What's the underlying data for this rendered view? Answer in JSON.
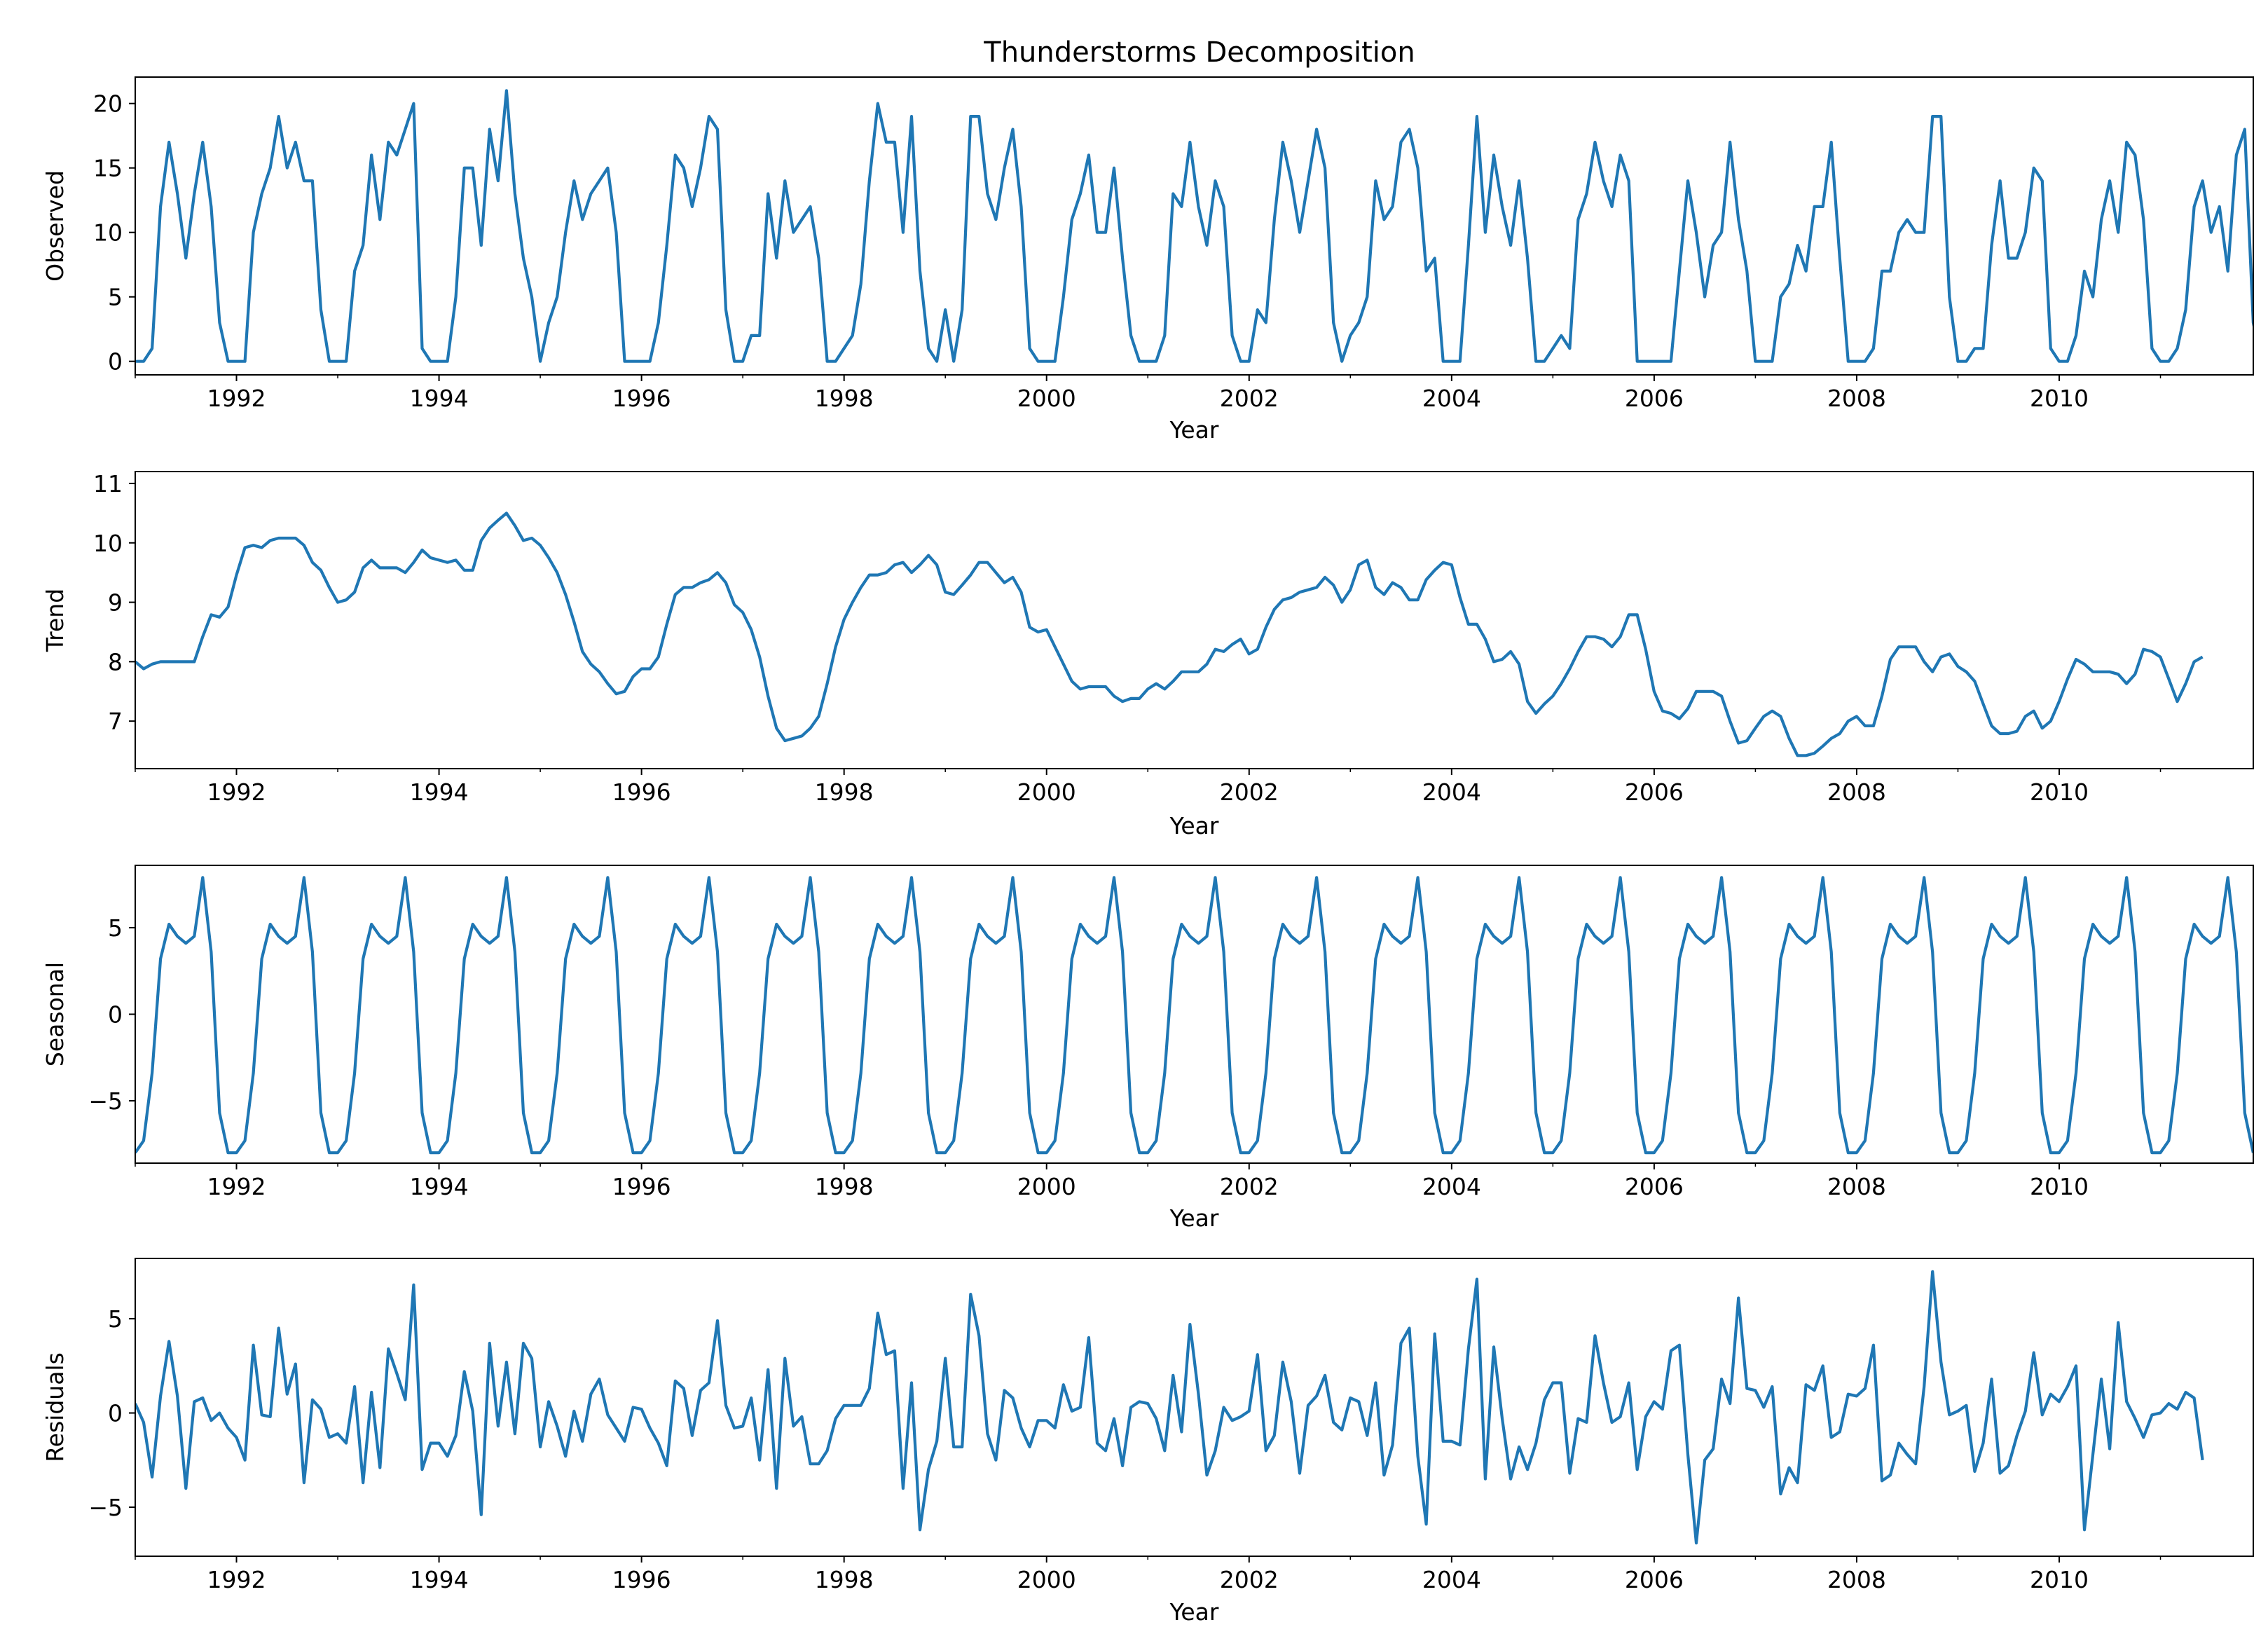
{
  "figure": {
    "title": "Thunderstorms Decomposition",
    "line_color": "#1f77b4"
  },
  "chart_data": [
    {
      "type": "line",
      "panel": "observed",
      "ylabel": "Observed",
      "xlabel": "Year",
      "xlim": [
        1991.0,
        2011.9167
      ],
      "ylim": [
        -1.05,
        22.05
      ],
      "yticks": [
        0,
        5,
        10,
        15,
        20
      ],
      "xticks": [
        1992,
        1994,
        1996,
        1998,
        2000,
        2002,
        2004,
        2006,
        2008,
        2010
      ],
      "grid": false,
      "x_start": 1991.0,
      "x_step": 0.08333,
      "values": [
        0,
        0,
        1,
        12,
        17,
        13,
        8,
        13,
        17,
        12,
        3,
        0,
        0,
        0,
        10,
        13,
        15,
        19,
        15,
        17,
        14,
        14,
        4,
        0,
        0,
        0,
        7,
        9,
        16,
        11,
        17,
        16,
        18,
        20,
        1,
        0,
        0,
        0,
        5,
        15,
        15,
        9,
        18,
        14,
        21,
        13,
        8,
        5,
        0,
        3,
        5,
        10,
        14,
        11,
        13,
        14,
        15,
        10,
        0,
        0,
        0,
        0,
        3,
        9,
        16,
        15,
        12,
        15,
        19,
        18,
        4,
        0,
        0,
        2,
        2,
        13,
        8,
        14,
        10,
        11,
        12,
        8,
        0,
        0,
        1,
        2,
        6,
        14,
        20,
        17,
        17,
        10,
        19,
        7,
        1,
        0,
        4,
        0,
        4,
        19,
        19,
        13,
        11,
        15,
        18,
        12,
        1,
        0,
        0,
        0,
        5,
        11,
        13,
        16,
        10,
        10,
        15,
        8,
        2,
        0,
        0,
        0,
        2,
        13,
        12,
        17,
        12,
        9,
        14,
        12,
        2,
        0,
        0,
        4,
        3,
        11,
        17,
        14,
        10,
        14,
        18,
        15,
        3,
        0,
        2,
        3,
        5,
        14,
        11,
        12,
        17,
        18,
        15,
        7,
        8,
        0,
        0,
        0,
        9,
        19,
        10,
        16,
        12,
        9,
        14,
        8,
        0,
        0,
        1,
        2,
        1,
        11,
        13,
        17,
        14,
        12,
        16,
        14,
        0,
        0,
        0,
        0,
        0,
        7,
        14,
        10,
        5,
        9,
        10,
        17,
        11,
        7,
        0,
        0,
        0,
        5,
        6,
        9,
        7,
        12,
        12,
        17,
        8,
        0,
        0,
        0,
        1,
        7,
        7,
        10,
        11,
        10,
        10,
        19,
        19,
        5,
        0,
        0,
        1,
        1,
        9,
        14,
        8,
        8,
        10,
        15,
        14,
        1,
        0,
        0,
        2,
        7,
        5,
        11,
        14,
        10,
        17,
        16,
        11,
        1,
        0,
        0,
        1,
        4,
        12,
        14,
        10,
        12,
        7,
        16,
        18,
        3,
        0
      ]
    },
    {
      "type": "line",
      "panel": "trend",
      "ylabel": "Trend",
      "xlabel": "Year",
      "xlim": [
        1991.0,
        2011.9167
      ],
      "ylim": [
        6.2,
        11.2
      ],
      "yticks": [
        7,
        8,
        9,
        10,
        11
      ],
      "xticks": [
        1992,
        1994,
        1996,
        1998,
        2000,
        2002,
        2004,
        2006,
        2008,
        2010
      ],
      "grid": false,
      "x_start": 1991.0,
      "x_step": 0.08333,
      "values": [
        8.0,
        7.88,
        7.96,
        8.0,
        8.0,
        8.0,
        8.0,
        8.0,
        8.42,
        8.79,
        8.75,
        8.92,
        9.46,
        9.92,
        9.96,
        9.92,
        10.04,
        10.08,
        10.08,
        10.08,
        9.96,
        9.67,
        9.54,
        9.25,
        9.0,
        9.04,
        9.17,
        9.58,
        9.71,
        9.58,
        9.58,
        9.58,
        9.5,
        9.67,
        9.88,
        9.75,
        9.71,
        9.67,
        9.71,
        9.54,
        9.54,
        10.04,
        10.25,
        10.38,
        10.5,
        10.29,
        10.04,
        10.08,
        9.96,
        9.75,
        9.5,
        9.13,
        8.67,
        8.17,
        7.96,
        7.83,
        7.63,
        7.46,
        7.5,
        7.75,
        7.88,
        7.88,
        8.08,
        8.63,
        9.13,
        9.25,
        9.25,
        9.33,
        9.38,
        9.5,
        9.33,
        8.96,
        8.83,
        8.54,
        8.08,
        7.42,
        6.88,
        6.67,
        6.71,
        6.75,
        6.88,
        7.08,
        7.63,
        8.25,
        8.71,
        9.0,
        9.25,
        9.46,
        9.46,
        9.5,
        9.63,
        9.67,
        9.5,
        9.63,
        9.79,
        9.63,
        9.17,
        9.13,
        9.29,
        9.46,
        9.67,
        9.67,
        9.5,
        9.33,
        9.42,
        9.17,
        8.58,
        8.5,
        8.54,
        8.25,
        7.96,
        7.67,
        7.54,
        7.58,
        7.58,
        7.58,
        7.42,
        7.33,
        7.38,
        7.38,
        7.54,
        7.63,
        7.54,
        7.67,
        7.83,
        7.83,
        7.83,
        7.96,
        8.21,
        8.17,
        8.29,
        8.38,
        8.13,
        8.21,
        8.58,
        8.88,
        9.04,
        9.08,
        9.17,
        9.21,
        9.25,
        9.42,
        9.29,
        9.0,
        9.21,
        9.63,
        9.71,
        9.25,
        9.13,
        9.33,
        9.25,
        9.04,
        9.04,
        9.38,
        9.54,
        9.67,
        9.63,
        9.08,
        8.63,
        8.63,
        8.38,
        8.0,
        8.04,
        8.17,
        7.96,
        7.33,
        7.13,
        7.29,
        7.42,
        7.63,
        7.88,
        8.17,
        8.42,
        8.42,
        8.38,
        8.25,
        8.42,
        8.79,
        8.79,
        8.21,
        7.5,
        7.17,
        7.13,
        7.04,
        7.21,
        7.5,
        7.5,
        7.5,
        7.42,
        7.0,
        6.63,
        6.67,
        6.88,
        7.08,
        7.17,
        7.08,
        6.71,
        6.42,
        6.42,
        6.46,
        6.58,
        6.71,
        6.79,
        7.0,
        7.08,
        6.92,
        6.92,
        7.42,
        8.04,
        8.25,
        8.25,
        8.25,
        8.0,
        7.83,
        8.08,
        8.13,
        7.92,
        7.83,
        7.67,
        7.29,
        6.92,
        6.79,
        6.79,
        6.83,
        7.08,
        7.17,
        6.88,
        7.0,
        7.33,
        7.71,
        8.04,
        7.96,
        7.83,
        7.83,
        7.83,
        7.79,
        7.63,
        7.79,
        8.21,
        8.17,
        8.08,
        7.71,
        7.33,
        7.63,
        8.0,
        8.08
      ]
    },
    {
      "type": "line",
      "panel": "seasonal",
      "ylabel": "Seasonal",
      "xlabel": "Year",
      "xlim": [
        1991.0,
        2011.9167
      ],
      "ylim": [
        -8.6,
        8.6
      ],
      "yticks": [
        -5,
        0,
        5
      ],
      "xticks": [
        1992,
        1994,
        1996,
        1998,
        2000,
        2002,
        2004,
        2006,
        2008,
        2010
      ],
      "grid": false,
      "x_start": 1991.0,
      "x_step": 0.08333,
      "period_values": [
        -8.0,
        -7.3,
        -3.4,
        3.2,
        5.2,
        4.5,
        4.1,
        4.5,
        7.9,
        3.6,
        -5.7,
        -8.0
      ],
      "repeats": 21
    },
    {
      "type": "line",
      "panel": "residuals",
      "ylabel": "Residuals",
      "xlabel": "Year",
      "xlim": [
        1991.0,
        2011.9167
      ],
      "ylim": [
        -7.6,
        8.2
      ],
      "yticks": [
        -5,
        0,
        5
      ],
      "xticks": [
        1992,
        1994,
        1996,
        1998,
        2000,
        2002,
        2004,
        2006,
        2008,
        2010
      ],
      "grid": false,
      "x_start": 1991.0,
      "x_step": 0.08333,
      "values": [
        0.5,
        -0.5,
        -3.4,
        0.9,
        3.8,
        0.9,
        -4.0,
        0.6,
        0.8,
        -0.4,
        0.0,
        -0.8,
        -1.3,
        -2.5,
        3.6,
        -0.1,
        -0.2,
        4.5,
        1.0,
        2.6,
        -3.7,
        0.7,
        0.2,
        -1.3,
        -1.1,
        -1.6,
        1.4,
        -3.7,
        1.1,
        -2.9,
        3.4,
        2.1,
        0.7,
        6.8,
        -3.0,
        -1.6,
        -1.6,
        -2.3,
        -1.2,
        2.2,
        0.1,
        -5.4,
        3.7,
        -0.7,
        2.7,
        -1.1,
        3.7,
        2.9,
        -1.8,
        0.6,
        -0.7,
        -2.3,
        0.1,
        -1.5,
        1.0,
        1.8,
        -0.1,
        -0.8,
        -1.5,
        0.3,
        0.2,
        -0.8,
        -1.6,
        -2.8,
        1.7,
        1.3,
        -1.2,
        1.2,
        1.6,
        4.9,
        0.4,
        -0.8,
        -0.7,
        0.8,
        -2.5,
        2.3,
        -4.0,
        2.9,
        -0.7,
        -0.2,
        -2.7,
        -2.7,
        -2.0,
        -0.3,
        0.4,
        0.4,
        0.4,
        1.3,
        5.3,
        3.1,
        3.3,
        -4.0,
        1.6,
        -6.2,
        -3.0,
        -1.5,
        2.9,
        -1.8,
        -1.8,
        6.3,
        4.1,
        -1.1,
        -2.5,
        1.2,
        0.8,
        -0.8,
        -1.8,
        -0.4,
        -0.4,
        -0.8,
        1.5,
        0.1,
        0.3,
        4.0,
        -1.6,
        -2.0,
        -0.3,
        -2.8,
        0.3,
        0.6,
        0.5,
        -0.3,
        -2.0,
        2.0,
        -1.0,
        4.7,
        1.0,
        -3.3,
        -2.0,
        0.3,
        -0.4,
        -0.2,
        0.1,
        3.1,
        -2.0,
        -1.2,
        2.7,
        0.6,
        -3.2,
        0.4,
        0.9,
        2.0,
        -0.5,
        -0.9,
        0.8,
        0.6,
        -1.2,
        1.6,
        -3.3,
        -1.7,
        3.7,
        4.5,
        -2.3,
        -5.9,
        4.2,
        -1.5,
        -1.5,
        -1.7,
        3.4,
        7.1,
        -3.5,
        3.5,
        -0.3,
        -3.5,
        -1.8,
        -3.0,
        -1.6,
        0.7,
        1.6,
        1.6,
        -3.2,
        -0.3,
        -0.5,
        4.1,
        1.6,
        -0.5,
        -0.2,
        1.6,
        -3.0,
        -0.2,
        0.6,
        0.2,
        3.3,
        3.6,
        -2.2,
        -6.9,
        -2.5,
        -1.9,
        1.8,
        0.5,
        6.1,
        1.3,
        1.2,
        0.3,
        1.4,
        -4.3,
        -2.9,
        -3.7,
        1.5,
        1.2,
        2.5,
        -1.3,
        -1.0,
        1.0,
        0.9,
        1.3,
        3.6,
        -3.6,
        -3.3,
        -1.6,
        -2.2,
        -2.7,
        1.4,
        7.5,
        2.7,
        -0.1,
        0.1,
        0.4,
        -3.1,
        -1.6,
        1.8,
        -3.2,
        -2.8,
        -1.2,
        0.1,
        3.2,
        -0.1,
        1.0,
        0.6,
        1.4,
        2.5,
        -6.2,
        -2.2,
        1.8,
        -1.9,
        4.8,
        0.6,
        -0.3,
        -1.3,
        -0.1,
        0.0,
        0.5,
        0.2,
        1.1,
        0.8,
        -2.5
      ]
    }
  ]
}
